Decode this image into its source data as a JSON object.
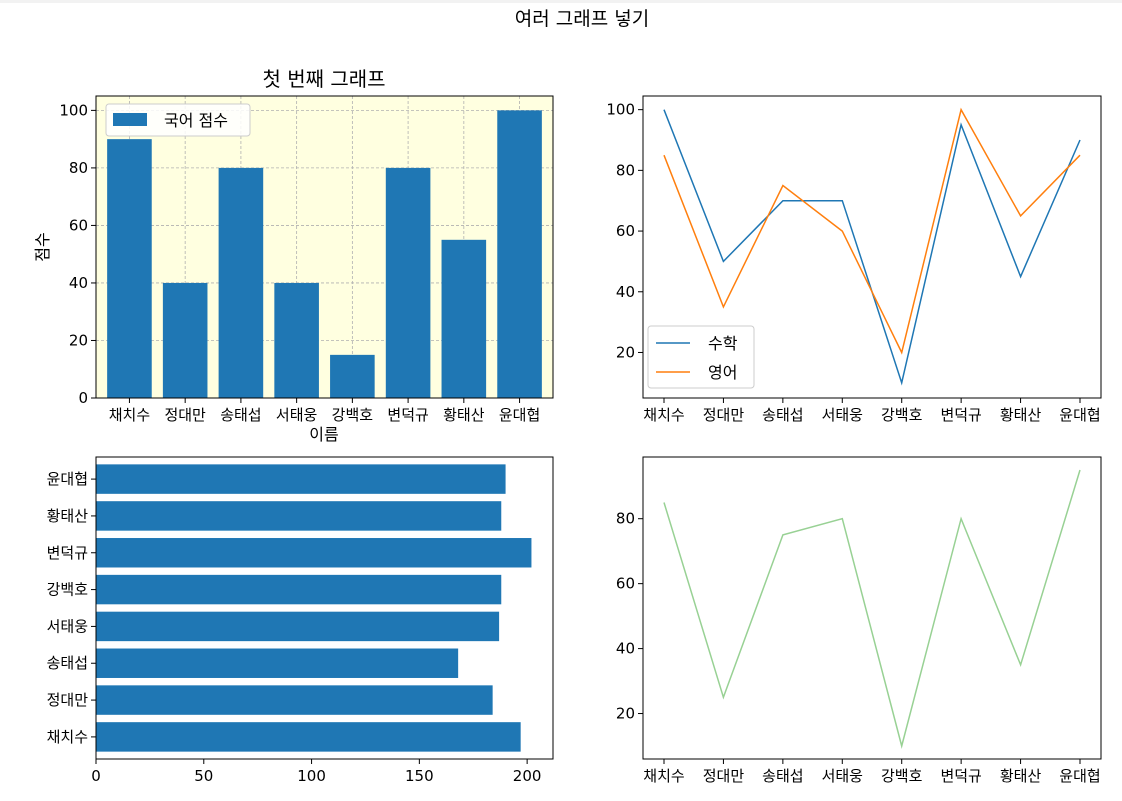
{
  "suptitle": "여러 그래프 넣기",
  "colors": {
    "bar": "#1f77b4",
    "math": "#1f77b4",
    "english": "#ff7f0e",
    "green": "#98d194",
    "panel1_bg": "#ffffe0"
  },
  "chart_data": [
    {
      "type": "bar",
      "title": "첫 번째 그래프",
      "xlabel": "이름",
      "ylabel": "점수",
      "categories": [
        "채치수",
        "정대만",
        "송태섭",
        "서태웅",
        "강백호",
        "변덕규",
        "황태산",
        "윤대협"
      ],
      "series": [
        {
          "name": "국어 점수",
          "values": [
            90,
            40,
            80,
            40,
            15,
            80,
            55,
            100
          ]
        }
      ],
      "ylim": [
        0,
        105
      ],
      "yticks": [
        0,
        20,
        40,
        60,
        80,
        100
      ],
      "grid": true,
      "legend": "top-left"
    },
    {
      "type": "line",
      "title": "",
      "categories": [
        "채치수",
        "정대만",
        "송태섭",
        "서태웅",
        "강백호",
        "변덕규",
        "황태산",
        "윤대협"
      ],
      "series": [
        {
          "name": "수학",
          "values": [
            100,
            50,
            70,
            70,
            10,
            95,
            45,
            90
          ]
        },
        {
          "name": "영어",
          "values": [
            85,
            35,
            75,
            60,
            20,
            100,
            65,
            85
          ]
        }
      ],
      "ylim": [
        5,
        104.5
      ],
      "yticks": [
        20,
        40,
        60,
        80,
        100
      ],
      "grid": false,
      "legend": "bottom-left"
    },
    {
      "type": "bar",
      "orientation": "horizontal",
      "title": "",
      "categories": [
        "채치수",
        "정대만",
        "송태섭",
        "서태웅",
        "강백호",
        "변덕규",
        "황태산",
        "윤대협"
      ],
      "values": [
        197,
        184,
        168,
        187,
        188,
        202,
        188,
        190
      ],
      "xlim": [
        0,
        212
      ],
      "xticks": [
        0,
        50,
        100,
        150,
        200
      ],
      "grid": false
    },
    {
      "type": "line",
      "title": "",
      "categories": [
        "채치수",
        "정대만",
        "송태섭",
        "서태웅",
        "강백호",
        "변덕규",
        "황태산",
        "윤대협"
      ],
      "series": [
        {
          "values": [
            85,
            25,
            75,
            80,
            10,
            80,
            35,
            95
          ]
        }
      ],
      "ylim": [
        6,
        99
      ],
      "yticks": [
        20,
        40,
        60,
        80
      ],
      "grid": false
    }
  ]
}
